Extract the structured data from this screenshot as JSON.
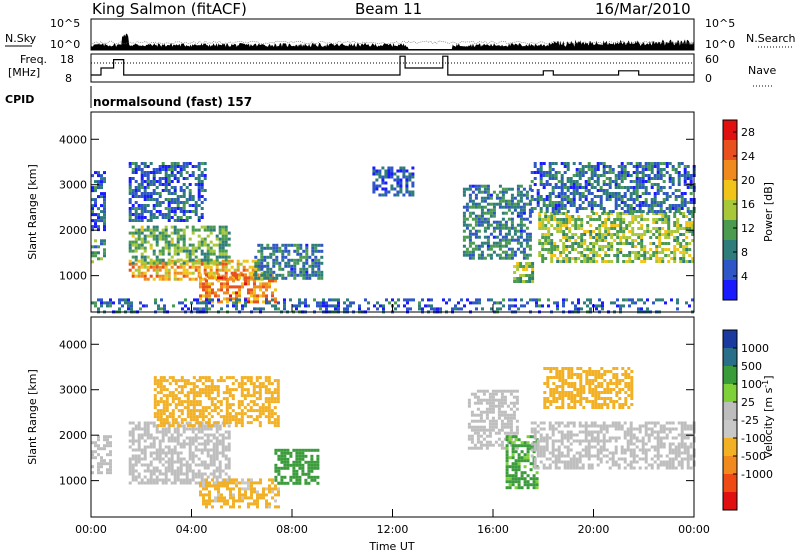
{
  "header": {
    "station": "King Salmon (fitACF)",
    "beam": "Beam 11",
    "date": "16/Mar/2010"
  },
  "strip": {
    "nsky_label": "N.Sky",
    "nsearch_label": "N.Search",
    "noise_ticks": [
      "10^5",
      "10^0"
    ],
    "freq_label_1": "Freq.",
    "freq_label_2": "[MHz]",
    "freq_ticks": [
      "18",
      "8"
    ],
    "nave_label": "Nave",
    "nave_ticks": [
      "60",
      "0"
    ],
    "cpid_label": "CPID",
    "cpid_text": "normalsound (fast) 157"
  },
  "colors": {
    "power_scale": [
      "#1a1aff",
      "#2f56c6",
      "#2e7d7a",
      "#4a9b50",
      "#a8c83a",
      "#f0c419",
      "#f08a1e",
      "#e8501e",
      "#e01010"
    ],
    "velocity_scale": [
      "#e01010",
      "#f04a14",
      "#f08a1e",
      "#f2b024",
      "#c8c8c8",
      "#bdbdbd",
      "#7fd13a",
      "#3a9b3a",
      "#2a6f8a",
      "#1a3aa0"
    ],
    "ground_scatter": "#bebebe"
  },
  "chart_data": [
    {
      "type": "heatmap",
      "panel": "power",
      "xlabel": "Time UT",
      "ylabel": "Slant Range [km]",
      "x_ticks": [
        "00:00",
        "04:00",
        "08:00",
        "12:00",
        "16:00",
        "20:00",
        "00:00"
      ],
      "xlim": [
        0,
        24
      ],
      "y_ticks": [
        1000,
        2000,
        3000,
        4000
      ],
      "ylim": [
        200,
        4600
      ],
      "colorbar": {
        "label": "Power [dB]",
        "ticks": [
          4,
          8,
          12,
          16,
          20,
          24,
          28
        ],
        "range": [
          0,
          30
        ]
      },
      "echo_regions": [
        {
          "t_start": 0.0,
          "t_end": 0.5,
          "r_start": 1300,
          "r_end": 1800,
          "value": 10
        },
        {
          "t_start": 0.0,
          "t_end": 0.5,
          "r_start": 2000,
          "r_end": 3300,
          "value": 6
        },
        {
          "t_start": 1.5,
          "t_end": 6.8,
          "r_start": 950,
          "r_end": 1350,
          "value": 20
        },
        {
          "t_start": 1.5,
          "t_end": 5.5,
          "r_start": 1300,
          "r_end": 2100,
          "value": 12
        },
        {
          "t_start": 1.5,
          "t_end": 4.5,
          "r_start": 2200,
          "r_end": 3500,
          "value": 6
        },
        {
          "t_start": 4.3,
          "t_end": 7.3,
          "r_start": 450,
          "r_end": 1050,
          "value": 22
        },
        {
          "t_start": 6.5,
          "t_end": 9.2,
          "r_start": 950,
          "r_end": 1700,
          "value": 8
        },
        {
          "t_start": 11.2,
          "t_end": 12.8,
          "r_start": 2800,
          "r_end": 3400,
          "value": 5
        },
        {
          "t_start": 14.8,
          "t_end": 17.5,
          "r_start": 1400,
          "r_end": 3000,
          "value": 8
        },
        {
          "t_start": 16.8,
          "t_end": 17.6,
          "r_start": 850,
          "r_end": 1300,
          "value": 14
        },
        {
          "t_start": 17.8,
          "t_end": 24.0,
          "r_start": 1300,
          "r_end": 2400,
          "value": 14
        },
        {
          "t_start": 17.5,
          "t_end": 24.0,
          "r_start": 2400,
          "r_end": 3500,
          "value": 7
        },
        {
          "t_start": 0.0,
          "t_end": 24.0,
          "r_start": 200,
          "r_end": 500,
          "value": 6
        }
      ]
    },
    {
      "type": "heatmap",
      "panel": "velocity",
      "xlabel": "Time UT",
      "ylabel": "Slant Range [km]",
      "x_ticks": [
        "00:00",
        "04:00",
        "08:00",
        "12:00",
        "16:00",
        "20:00",
        "00:00"
      ],
      "xlim": [
        0,
        24
      ],
      "y_ticks": [
        1000,
        2000,
        3000,
        4000
      ],
      "ylim": [
        200,
        4600
      ],
      "colorbar": {
        "label": "Velocity [m s",
        "label_sup": "-1",
        "label_end": "]",
        "ticks": [
          1000,
          500,
          100,
          25,
          -25,
          -100,
          -500,
          -1000
        ]
      },
      "echo_regions": [
        {
          "t_start": 0.0,
          "t_end": 0.8,
          "r_start": 1200,
          "r_end": 2000,
          "value": "ground"
        },
        {
          "t_start": 1.5,
          "t_end": 5.5,
          "r_start": 950,
          "r_end": 2300,
          "value": "ground"
        },
        {
          "t_start": 4.3,
          "t_end": 7.5,
          "r_start": 450,
          "r_end": 1050,
          "value": -150
        },
        {
          "t_start": 7.3,
          "t_end": 9.0,
          "r_start": 950,
          "r_end": 1700,
          "value": 200
        },
        {
          "t_start": 2.5,
          "t_end": 7.5,
          "r_start": 2200,
          "r_end": 3300,
          "value": -300
        },
        {
          "t_start": 15.0,
          "t_end": 17.0,
          "r_start": 1700,
          "r_end": 3000,
          "value": "ground"
        },
        {
          "t_start": 16.5,
          "t_end": 17.8,
          "r_start": 850,
          "r_end": 2000,
          "value": 150
        },
        {
          "t_start": 17.5,
          "t_end": 24.0,
          "r_start": 1300,
          "r_end": 2300,
          "value": "ground"
        },
        {
          "t_start": 18.0,
          "t_end": 21.5,
          "r_start": 2600,
          "r_end": 3500,
          "value": -300
        }
      ]
    }
  ]
}
